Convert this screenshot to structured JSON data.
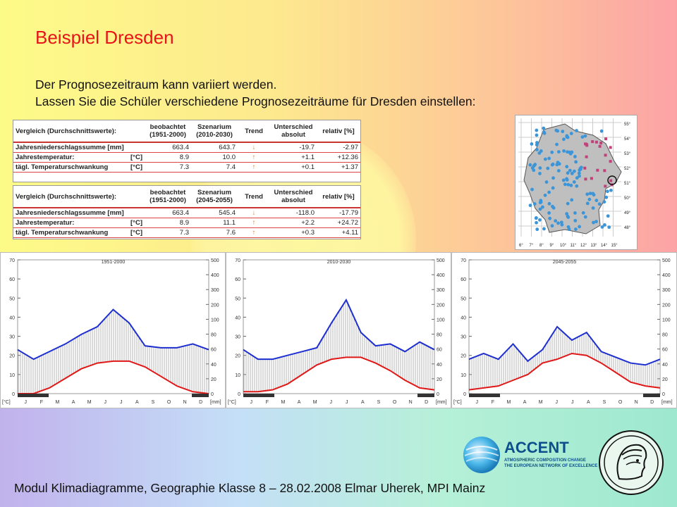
{
  "slide": {
    "title": "Beispiel Dresden",
    "line1": "Der Prognosezeitraum kann variiert werden.",
    "line2": "Lassen Sie die Schüler verschiedene Prognosezeiträume für Dresden einstellen:",
    "footer": "Modul Klimadiagramme, Geographie Klasse 8 – 28.02.2008 Elmar Uherek, MPI Mainz"
  },
  "tables": [
    {
      "h_compare": "Vergleich (Durchschnittswerte):",
      "h_obs": "beobachtet (1951-2000)",
      "h_scen": "Szenarium (2010-2030)",
      "h_trend": "Trend",
      "h_diff": "Unterschied",
      "h_abs": "absolut",
      "h_rel": "relativ [%]",
      "rows": [
        {
          "label": "Jahresniederschlagssumme [mm]",
          "obs": "663.4",
          "scen": "643.7",
          "trend": "down",
          "abs": "-19.7",
          "rel": "-2.97"
        },
        {
          "label": "Jahrestemperatur:",
          "unit": "[°C]",
          "obs": "8.9",
          "scen": "10.0",
          "trend": "up",
          "abs": "+1.1",
          "rel": "+12.36"
        },
        {
          "label": "tägl. Temperaturschwankung",
          "unit": "[°C]",
          "obs": "7.3",
          "scen": "7.4",
          "trend": "up",
          "abs": "+0.1",
          "rel": "+1.37"
        }
      ]
    },
    {
      "h_compare": "Vergleich (Durchschnittswerte):",
      "h_obs": "beobachtet (1951-2000)",
      "h_scen": "Szenarium (2045-2055)",
      "h_trend": "Trend",
      "h_diff": "Unterschied",
      "h_abs": "absolut",
      "h_rel": "relativ [%]",
      "rows": [
        {
          "label": "Jahresniederschlagssumme [mm]",
          "obs": "663.4",
          "scen": "545.4",
          "trend": "down",
          "abs": "-118.0",
          "rel": "-17.79"
        },
        {
          "label": "Jahrestemperatur:",
          "unit": "[°C]",
          "obs": "8.9",
          "scen": "11.1",
          "trend": "up",
          "abs": "+2.2",
          "rel": "+24.72"
        },
        {
          "label": "tägl. Temperaturschwankung",
          "unit": "[°C]",
          "obs": "7.3",
          "scen": "7.6",
          "trend": "up",
          "abs": "+0.3",
          "rel": "+4.11"
        }
      ]
    }
  ],
  "map": {
    "lat_labels": [
      "55°",
      "54°",
      "53°",
      "52°",
      "51°",
      "50°",
      "49°",
      "48°"
    ],
    "lon_labels": [
      "6°",
      "7°",
      "8°",
      "9°",
      "10°",
      "11°",
      "12°",
      "13°",
      "14°",
      "15°"
    ]
  },
  "accent_logo": {
    "name": "ACCENT",
    "sub1": "ATMOSPHERIC COMPOSITION CHANGE",
    "sub2": "THE EUROPEAN NETWORK OF EXCELLENCE"
  },
  "chart_data": [
    {
      "type": "area",
      "title": "1951-2000",
      "months": [
        "J",
        "F",
        "M",
        "A",
        "M",
        "J",
        "J",
        "A",
        "S",
        "O",
        "N",
        "D"
      ],
      "ylabel_left": "[°C]",
      "ylabel_right": "[mm]",
      "ylim_left": [
        0,
        70
      ],
      "ylim_right": [
        0,
        500
      ],
      "left_ticks": [
        0,
        10,
        20,
        30,
        40,
        50,
        60,
        70
      ],
      "right_ticks": [
        0,
        20,
        40,
        60,
        80,
        100,
        200,
        300,
        400,
        500
      ],
      "precip_series": [
        23,
        18,
        22,
        26,
        31,
        35,
        44,
        37,
        25,
        24,
        24,
        26,
        23
      ],
      "temp_series": [
        0,
        0,
        3,
        8,
        13,
        16,
        17,
        17,
        14,
        9,
        4,
        1,
        0
      ]
    },
    {
      "type": "area",
      "title": "2010-2030",
      "months": [
        "J",
        "F",
        "M",
        "A",
        "M",
        "J",
        "J",
        "A",
        "S",
        "O",
        "N",
        "D"
      ],
      "ylabel_left": "[°C]",
      "ylabel_right": "[mm]",
      "ylim_left": [
        0,
        70
      ],
      "ylim_right": [
        0,
        500
      ],
      "left_ticks": [
        0,
        10,
        20,
        30,
        40,
        50,
        60,
        70
      ],
      "right_ticks": [
        0,
        20,
        40,
        60,
        80,
        100,
        200,
        300,
        400,
        500
      ],
      "precip_series": [
        23,
        18,
        18,
        20,
        22,
        24,
        37,
        49,
        32,
        25,
        26,
        22,
        27,
        23
      ],
      "temp_series": [
        1,
        1,
        2,
        5,
        10,
        15,
        18,
        19,
        19,
        16,
        12,
        7,
        3,
        2
      ]
    },
    {
      "type": "area",
      "title": "2045-2055",
      "months": [
        "J",
        "F",
        "M",
        "A",
        "M",
        "J",
        "J",
        "A",
        "S",
        "O",
        "N",
        "D"
      ],
      "ylabel_left": "[°C]",
      "ylabel_right": "[mm]",
      "ylim_left": [
        0,
        70
      ],
      "ylim_right": [
        0,
        500
      ],
      "left_ticks": [
        0,
        10,
        20,
        30,
        40,
        50,
        60,
        70
      ],
      "right_ticks": [
        0,
        20,
        40,
        60,
        80,
        100,
        200,
        300,
        400,
        500
      ],
      "precip_series": [
        18,
        21,
        18,
        26,
        17,
        23,
        35,
        28,
        32,
        22,
        19,
        16,
        15,
        18
      ],
      "temp_series": [
        2,
        3,
        4,
        7,
        10,
        16,
        18,
        21,
        20,
        16,
        11,
        6,
        4,
        3
      ]
    }
  ]
}
